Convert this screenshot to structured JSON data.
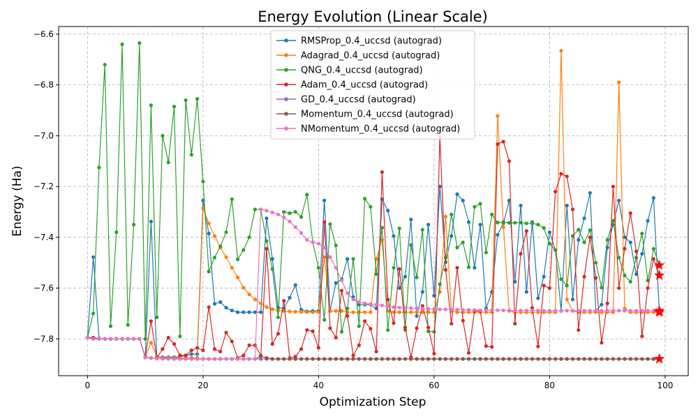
{
  "chart_data": {
    "type": "line",
    "title": "Energy Evolution (Linear Scale)",
    "xlabel": "Optimization Step",
    "ylabel": "Energy (Ha)",
    "xlim": [
      -5,
      104
    ],
    "ylim": [
      -7.945,
      -6.57
    ],
    "xticks": [
      0,
      20,
      40,
      60,
      80,
      100
    ],
    "yticks": [
      -7.8,
      -7.6,
      -7.4,
      -7.2,
      -7.0,
      -6.8,
      -6.6
    ],
    "ytick_labels": [
      "−7.8",
      "−7.6",
      "−7.4",
      "−7.2",
      "−7.0",
      "−6.8",
      "−6.6"
    ],
    "grid": true,
    "legend_position": "top-center",
    "marker": "circle",
    "final_marker": "star",
    "final_marker_color": "#ff0000",
    "series": [
      {
        "name": "RMSProp_0.4_uccsd (autograd)",
        "color": "#1f77b4",
        "values": [
          -7.795,
          -7.478,
          -7.798,
          -7.8,
          -7.8,
          -7.8,
          -7.8,
          -7.8,
          -7.8,
          -7.8,
          -7.87,
          -7.338,
          -7.87,
          -7.872,
          -7.872,
          -7.872,
          -7.87,
          -7.865,
          -7.86,
          -7.86,
          -7.255,
          -7.385,
          -7.662,
          -7.655,
          -7.677,
          -7.688,
          -7.695,
          -7.695,
          -7.695,
          -7.695,
          -7.695,
          -7.325,
          -7.485,
          -7.677,
          -7.68,
          -7.638,
          -7.588,
          -7.685,
          -7.692,
          -7.69,
          -7.69,
          -7.255,
          -7.69,
          -7.58,
          -7.565,
          -7.485,
          -7.635,
          -7.665,
          -7.665,
          -7.665,
          -7.68,
          -7.25,
          -7.295,
          -7.395,
          -7.6,
          -7.555,
          -7.33,
          -7.71,
          -7.615,
          -7.35,
          -7.63,
          -7.2,
          -7.498,
          -7.395,
          -7.23,
          -7.255,
          -7.34,
          -7.52,
          -7.35,
          -7.68,
          -7.615,
          -7.39,
          -7.345,
          -7.255,
          -7.575,
          -7.275,
          -7.615,
          -7.34,
          -7.64,
          -7.555,
          -7.38,
          -7.45,
          -7.69,
          -7.275,
          -7.645,
          -7.41,
          -7.325,
          -7.225,
          -7.69,
          -7.665,
          -7.44,
          -7.35,
          -7.255,
          -7.4,
          -7.42,
          -7.545,
          -7.465,
          -7.335,
          -7.245,
          -7.695
        ]
      },
      {
        "name": "Adagrad_0.4_uccsd (autograd)",
        "color": "#ff7f0e",
        "values": [
          -7.795,
          -7.8,
          -7.8,
          -7.8,
          -7.8,
          -7.8,
          -7.8,
          -7.8,
          -7.8,
          -7.8,
          -7.87,
          -7.815,
          -7.87,
          -7.875,
          -7.875,
          -7.875,
          -7.875,
          -7.875,
          -7.875,
          -7.875,
          -7.285,
          -7.345,
          -7.395,
          -7.44,
          -7.478,
          -7.52,
          -7.558,
          -7.598,
          -7.625,
          -7.645,
          -7.66,
          -7.675,
          -7.683,
          -7.688,
          -7.69,
          -7.692,
          -7.693,
          -7.694,
          -7.695,
          -7.695,
          -7.695,
          -7.478,
          -7.69,
          -7.69,
          -7.69,
          -7.695,
          -7.695,
          -7.695,
          -7.695,
          -7.695,
          -7.485,
          -7.41,
          -7.69,
          -7.695,
          -7.695,
          -7.695,
          -7.695,
          -7.695,
          -7.695,
          -7.695,
          -7.695,
          -7.615,
          -7.318,
          -7.69,
          -7.695,
          -7.695,
          -7.695,
          -7.695,
          -7.695,
          -7.695,
          -7.695,
          -6.922,
          -7.36,
          -7.69,
          -7.695,
          -7.695,
          -7.695,
          -7.695,
          -7.695,
          -7.695,
          -7.695,
          -7.695,
          -6.665,
          -7.645,
          -7.69,
          -7.695,
          -7.695,
          -7.695,
          -7.695,
          -7.695,
          -7.695,
          -7.695,
          -6.79,
          -7.68,
          -7.695,
          -7.695,
          -7.695,
          -7.695,
          -7.695,
          -7.695
        ]
      },
      {
        "name": "QNG_0.4_uccsd (autograd)",
        "color": "#2ca02c",
        "values": [
          -7.795,
          -7.7,
          -7.125,
          -6.72,
          -7.75,
          -7.38,
          -6.64,
          -7.745,
          -7.35,
          -6.635,
          -7.8,
          -6.88,
          -7.715,
          -7.0,
          -7.105,
          -6.885,
          -7.79,
          -6.86,
          -7.075,
          -6.855,
          -7.18,
          -7.535,
          -7.48,
          -7.435,
          -7.38,
          -7.25,
          -7.487,
          -7.45,
          -7.4,
          -7.29,
          -7.29,
          -7.415,
          -7.525,
          -7.715,
          -7.3,
          -7.305,
          -7.3,
          -7.32,
          -7.232,
          -7.42,
          -7.52,
          -7.725,
          -7.348,
          -7.432,
          -7.772,
          -7.68,
          -7.485,
          -7.75,
          -7.248,
          -7.28,
          -7.545,
          -7.362,
          -7.765,
          -7.52,
          -7.365,
          -7.765,
          -7.43,
          -7.558,
          -7.37,
          -7.77,
          -7.772,
          -7.585,
          -7.48,
          -7.31,
          -7.44,
          -7.42,
          -7.518,
          -7.28,
          -7.268,
          -7.46,
          -7.31,
          -7.342,
          -7.34,
          -7.343,
          -7.343,
          -7.342,
          -7.345,
          -7.345,
          -7.35,
          -7.363,
          -7.425,
          -7.45,
          -7.565,
          -7.59,
          -7.395,
          -7.37,
          -7.42,
          -7.372,
          -7.5,
          -7.598,
          -7.41,
          -7.335,
          -7.48,
          -7.55,
          -7.575,
          -7.48,
          -7.385,
          -7.57,
          -7.445,
          -7.51
        ]
      },
      {
        "name": "Adam_0.4_uccsd (autograd)",
        "color": "#d62728",
        "values": [
          -7.795,
          -7.795,
          -7.8,
          -7.8,
          -7.8,
          -7.8,
          -7.8,
          -7.8,
          -7.8,
          -7.8,
          -7.87,
          -7.73,
          -7.875,
          -7.84,
          -7.795,
          -7.82,
          -7.865,
          -7.865,
          -7.845,
          -7.835,
          -7.845,
          -7.675,
          -7.84,
          -7.85,
          -7.775,
          -7.81,
          -7.875,
          -7.865,
          -7.825,
          -7.825,
          -7.865,
          -7.445,
          -7.82,
          -7.78,
          -7.65,
          -7.875,
          -7.87,
          -7.84,
          -7.765,
          -7.77,
          -7.835,
          -7.34,
          -7.758,
          -7.795,
          -7.61,
          -7.71,
          -7.865,
          -7.825,
          -7.73,
          -7.76,
          -7.85,
          -7.143,
          -7.645,
          -7.738,
          -7.525,
          -7.755,
          -7.872,
          -7.758,
          -7.67,
          -7.755,
          -7.858,
          -7.005,
          -7.528,
          -7.74,
          -7.52,
          -7.728,
          -7.855,
          -7.69,
          -7.69,
          -7.828,
          -7.832,
          -7.033,
          -7.023,
          -7.1,
          -7.74,
          -7.465,
          -7.375,
          -7.678,
          -7.83,
          -7.59,
          -7.6,
          -7.22,
          -7.15,
          -7.16,
          -7.29,
          -7.765,
          -7.555,
          -7.4,
          -7.56,
          -7.815,
          -7.66,
          -7.2,
          -7.6,
          -7.445,
          -7.305,
          -7.455,
          -7.79,
          -7.6,
          -7.485,
          -7.55
        ]
      },
      {
        "name": "GD_0.4_uccsd (autograd)",
        "color": "#9467bd",
        "values": [
          -7.795,
          -7.8,
          -7.8,
          -7.8,
          -7.8,
          -7.8,
          -7.8,
          -7.8,
          -7.8,
          -7.8,
          -7.873,
          -7.875,
          -7.877,
          -7.878,
          -7.878,
          -7.879,
          -7.879,
          -7.879,
          -7.879,
          -7.879,
          -7.879,
          -7.879,
          -7.879,
          -7.879,
          -7.879,
          -7.879,
          -7.879,
          -7.879,
          -7.879,
          -7.879,
          -7.879,
          -7.879,
          -7.879,
          -7.879,
          -7.879,
          -7.879,
          -7.879,
          -7.879,
          -7.879,
          -7.879,
          -7.879,
          -7.879,
          -7.879,
          -7.879,
          -7.879,
          -7.879,
          -7.879,
          -7.879,
          -7.879,
          -7.879,
          -7.879,
          -7.879,
          -7.879,
          -7.879,
          -7.879,
          -7.879,
          -7.879,
          -7.879,
          -7.879,
          -7.879,
          -7.879,
          -7.879,
          -7.879,
          -7.879,
          -7.879,
          -7.879,
          -7.879,
          -7.879,
          -7.879,
          -7.879,
          -7.879,
          -7.879,
          -7.879,
          -7.879,
          -7.879,
          -7.879,
          -7.879,
          -7.879,
          -7.879,
          -7.879,
          -7.879,
          -7.879,
          -7.879,
          -7.879,
          -7.879,
          -7.879,
          -7.879,
          -7.879,
          -7.879,
          -7.879,
          -7.879,
          -7.879,
          -7.879,
          -7.879,
          -7.879,
          -7.879,
          -7.879,
          -7.879,
          -7.879,
          -7.879
        ]
      },
      {
        "name": "Momentum_0.4_uccsd (autograd)",
        "color": "#8c564b",
        "values": [
          -7.795,
          -7.8,
          -7.8,
          -7.8,
          -7.8,
          -7.8,
          -7.8,
          -7.8,
          -7.8,
          -7.8,
          -7.873,
          -7.875,
          -7.877,
          -7.878,
          -7.878,
          -7.879,
          -7.879,
          -7.879,
          -7.879,
          -7.879,
          -7.879,
          -7.879,
          -7.879,
          -7.879,
          -7.879,
          -7.879,
          -7.879,
          -7.879,
          -7.879,
          -7.879,
          -7.868,
          -7.875,
          -7.879,
          -7.879,
          -7.879,
          -7.879,
          -7.879,
          -7.879,
          -7.879,
          -7.879,
          -7.879,
          -7.879,
          -7.879,
          -7.879,
          -7.879,
          -7.879,
          -7.879,
          -7.879,
          -7.879,
          -7.879,
          -7.879,
          -7.879,
          -7.879,
          -7.879,
          -7.879,
          -7.879,
          -7.879,
          -7.879,
          -7.879,
          -7.879,
          -7.879,
          -7.879,
          -7.879,
          -7.879,
          -7.879,
          -7.879,
          -7.879,
          -7.879,
          -7.879,
          -7.879,
          -7.879,
          -7.879,
          -7.879,
          -7.879,
          -7.879,
          -7.879,
          -7.879,
          -7.879,
          -7.879,
          -7.879,
          -7.879,
          -7.879,
          -7.879,
          -7.879,
          -7.879,
          -7.879,
          -7.879,
          -7.879,
          -7.879,
          -7.879,
          -7.879,
          -7.879,
          -7.879,
          -7.879,
          -7.879,
          -7.879,
          -7.879,
          -7.879,
          -7.879,
          -7.879
        ]
      },
      {
        "name": "NMomentum_0.4_uccsd (autograd)",
        "color": "#e377c2",
        "values": [
          -7.795,
          -7.8,
          -7.8,
          -7.8,
          -7.8,
          -7.8,
          -7.8,
          -7.8,
          -7.8,
          -7.8,
          -7.873,
          -7.875,
          -7.877,
          -7.878,
          -7.878,
          -7.879,
          -7.879,
          -7.879,
          -7.879,
          -7.879,
          -7.879,
          -7.879,
          -7.879,
          -7.879,
          -7.879,
          -7.879,
          -7.879,
          -7.879,
          -7.879,
          -7.879,
          -7.29,
          -7.295,
          -7.302,
          -7.31,
          -7.322,
          -7.338,
          -7.36,
          -7.383,
          -7.41,
          -7.42,
          -7.425,
          -7.44,
          -7.478,
          -7.52,
          -7.57,
          -7.62,
          -7.645,
          -7.655,
          -7.66,
          -7.663,
          -7.665,
          -7.668,
          -7.672,
          -7.675,
          -7.677,
          -7.678,
          -7.679,
          -7.68,
          -7.681,
          -7.682,
          -7.683,
          -7.684,
          -7.684,
          -7.685,
          -7.685,
          -7.686,
          -7.686,
          -7.686,
          -7.687,
          -7.687,
          -7.687,
          -7.687,
          -7.688,
          -7.688,
          -7.688,
          -7.688,
          -7.688,
          -7.688,
          -7.688,
          -7.689,
          -7.689,
          -7.689,
          -7.689,
          -7.689,
          -7.689,
          -7.689,
          -7.689,
          -7.689,
          -7.689,
          -7.689,
          -7.689,
          -7.689,
          -7.689,
          -7.689,
          -7.689,
          -7.689,
          -7.689,
          -7.689,
          -7.689,
          -7.689
        ]
      }
    ]
  }
}
